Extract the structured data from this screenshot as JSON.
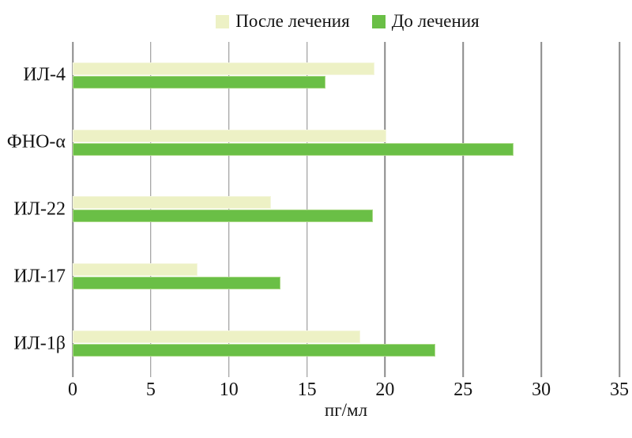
{
  "chart_data": {
    "type": "bar",
    "orientation": "horizontal",
    "title": "",
    "xlabel": "пг/мл",
    "ylabel": "",
    "xlim": [
      0,
      35
    ],
    "xticks": [
      0,
      5,
      10,
      15,
      20,
      25,
      30,
      35
    ],
    "grid": true,
    "legend_position": "top",
    "categories": [
      "ИЛ-4",
      "ФНО-α",
      "ИЛ-22",
      "ИЛ-17",
      "ИЛ-1β"
    ],
    "series": [
      {
        "name": "После лечения",
        "color": "#edf1c5",
        "edge_color": "#f4f6dc",
        "values": [
          19.3,
          20.1,
          12.7,
          8.0,
          18.4
        ]
      },
      {
        "name": "До лечения",
        "color": "#6abf46",
        "edge_color": "#a8d884",
        "values": [
          16.2,
          28.2,
          19.2,
          13.3,
          23.2
        ]
      }
    ],
    "gridline_color": "#8a8a8a",
    "text_color": "#141414"
  }
}
